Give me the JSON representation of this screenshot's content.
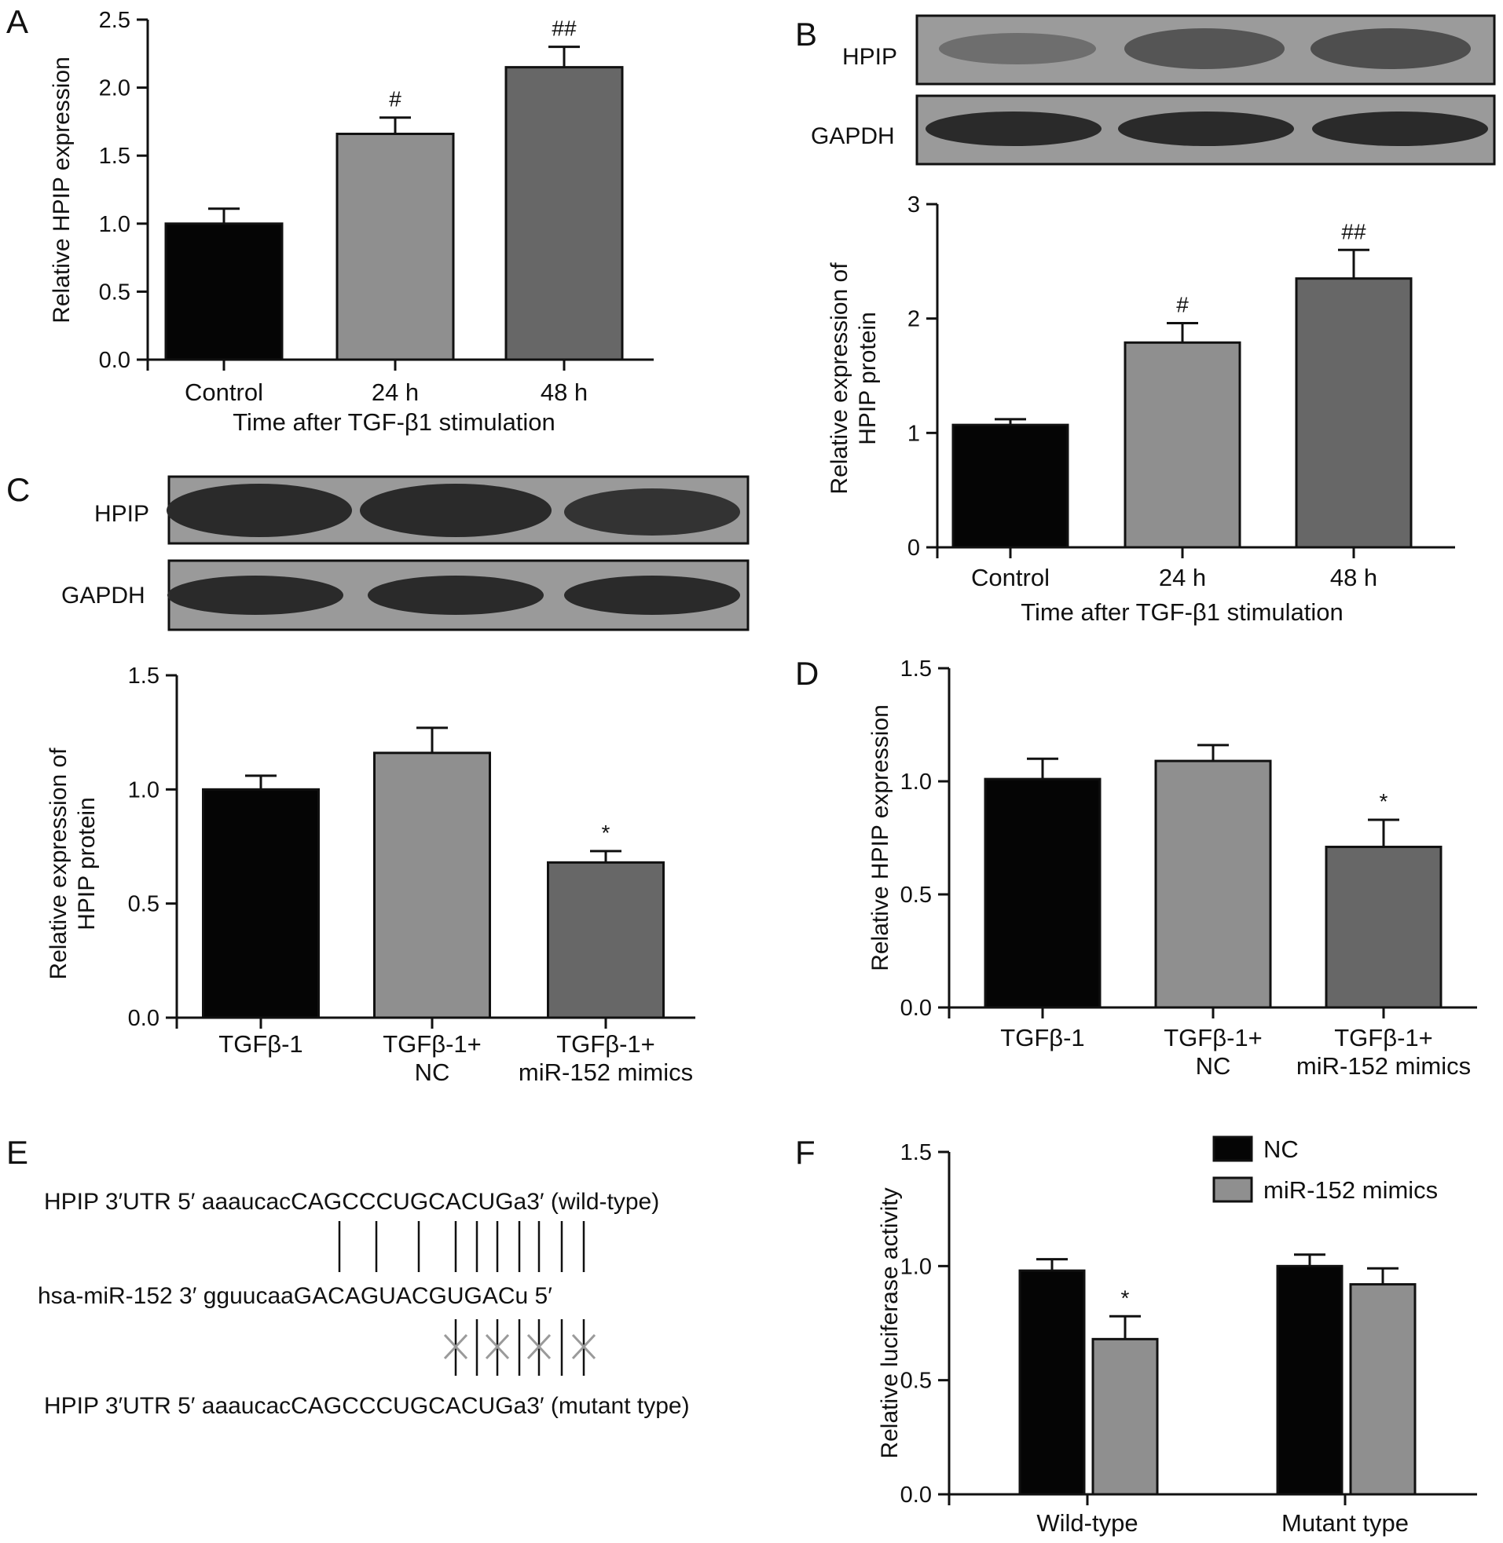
{
  "figure": {
    "panels": [
      "A",
      "B",
      "C",
      "D",
      "E",
      "F"
    ]
  },
  "blots": {
    "B": {
      "lanes_bands": [
        "HPIP",
        "GAPDH"
      ]
    },
    "C": {
      "lanes_bands": [
        "HPIP",
        "GAPDH"
      ]
    }
  },
  "sequence_panel": {
    "wild_type": "HPIP 3′UTR 5′ aaaucacCAGCCCUGCACUGa3′ (wild-type)",
    "mirna": "hsa-miR-152 3′ gguucaaGACAGUACGUGACu 5′",
    "mutant": "HPIP 3′UTR 5′ aaaucacCAGCCCUGCACUGa3′ (mutant type)"
  },
  "colors": {
    "bar1": "#050505",
    "bar2": "#8f8f8f",
    "bar3": "#676767",
    "cross": "#9a9a9a"
  },
  "chart_data": [
    {
      "panel": "A",
      "type": "bar",
      "categories": [
        "Control",
        "24 h",
        "48 h"
      ],
      "values": [
        1.0,
        1.66,
        2.15
      ],
      "errors": [
        0.11,
        0.12,
        0.15
      ],
      "significance": [
        "",
        "#",
        "##"
      ],
      "xlabel": "Time after TGF-β1 stimulation",
      "ylabel": "Relative HPIP expression",
      "ylim": [
        0,
        2.5
      ],
      "yticks": [
        "0.0",
        "0.5",
        "1.0",
        "1.5",
        "2.0",
        "2.5"
      ]
    },
    {
      "panel": "B",
      "type": "bar",
      "categories": [
        "Control",
        "24 h",
        "48 h"
      ],
      "values": [
        1.07,
        1.79,
        2.35
      ],
      "errors": [
        0.05,
        0.17,
        0.25
      ],
      "significance": [
        "",
        "#",
        "##"
      ],
      "xlabel": "Time after TGF-β1 stimulation",
      "ylabel": [
        "Relative expression of",
        "HPIP protein"
      ],
      "ylim": [
        0,
        3
      ],
      "yticks": [
        "0",
        "1",
        "2",
        "3"
      ]
    },
    {
      "panel": "C",
      "type": "bar",
      "categories": [
        [
          "TGFβ-1"
        ],
        [
          "TGFβ-1+",
          "NC"
        ],
        [
          "TGFβ-1+",
          "miR-152 mimics"
        ]
      ],
      "values": [
        1.0,
        1.16,
        0.68
      ],
      "errors": [
        0.06,
        0.11,
        0.05
      ],
      "significance": [
        "",
        "",
        "*"
      ],
      "xlabel": "",
      "ylabel": [
        "Relative expression of",
        "HPIP protein"
      ],
      "ylim": [
        0,
        1.5
      ],
      "yticks": [
        "0.0",
        "0.5",
        "1.0",
        "1.5"
      ]
    },
    {
      "panel": "D",
      "type": "bar",
      "categories": [
        [
          "TGFβ-1"
        ],
        [
          "TGFβ-1+",
          "NC"
        ],
        [
          "TGFβ-1+",
          "miR-152 mimics"
        ]
      ],
      "values": [
        1.01,
        1.09,
        0.71
      ],
      "errors": [
        0.09,
        0.07,
        0.12
      ],
      "significance": [
        "",
        "",
        "*"
      ],
      "xlabel": "",
      "ylabel": "Relative HPIP expression",
      "ylim": [
        0,
        1.5
      ],
      "yticks": [
        "0.0",
        "0.5",
        "1.0",
        "1.5"
      ]
    },
    {
      "panel": "F",
      "type": "bar",
      "categories": [
        "Wild-type",
        "Mutant type"
      ],
      "series": [
        {
          "name": "NC",
          "values": [
            0.98,
            1.0
          ],
          "errors": [
            0.05,
            0.05
          ],
          "significance": [
            "",
            ""
          ]
        },
        {
          "name": "miR-152 mimics",
          "values": [
            0.68,
            0.92
          ],
          "errors": [
            0.1,
            0.07
          ],
          "significance": [
            "*",
            ""
          ]
        }
      ],
      "xlabel": "",
      "ylabel": "Relative luciferase activity",
      "ylim": [
        0,
        1.5
      ],
      "yticks": [
        "0.0",
        "0.5",
        "1.0",
        "1.5"
      ],
      "legend": "top-right"
    }
  ]
}
